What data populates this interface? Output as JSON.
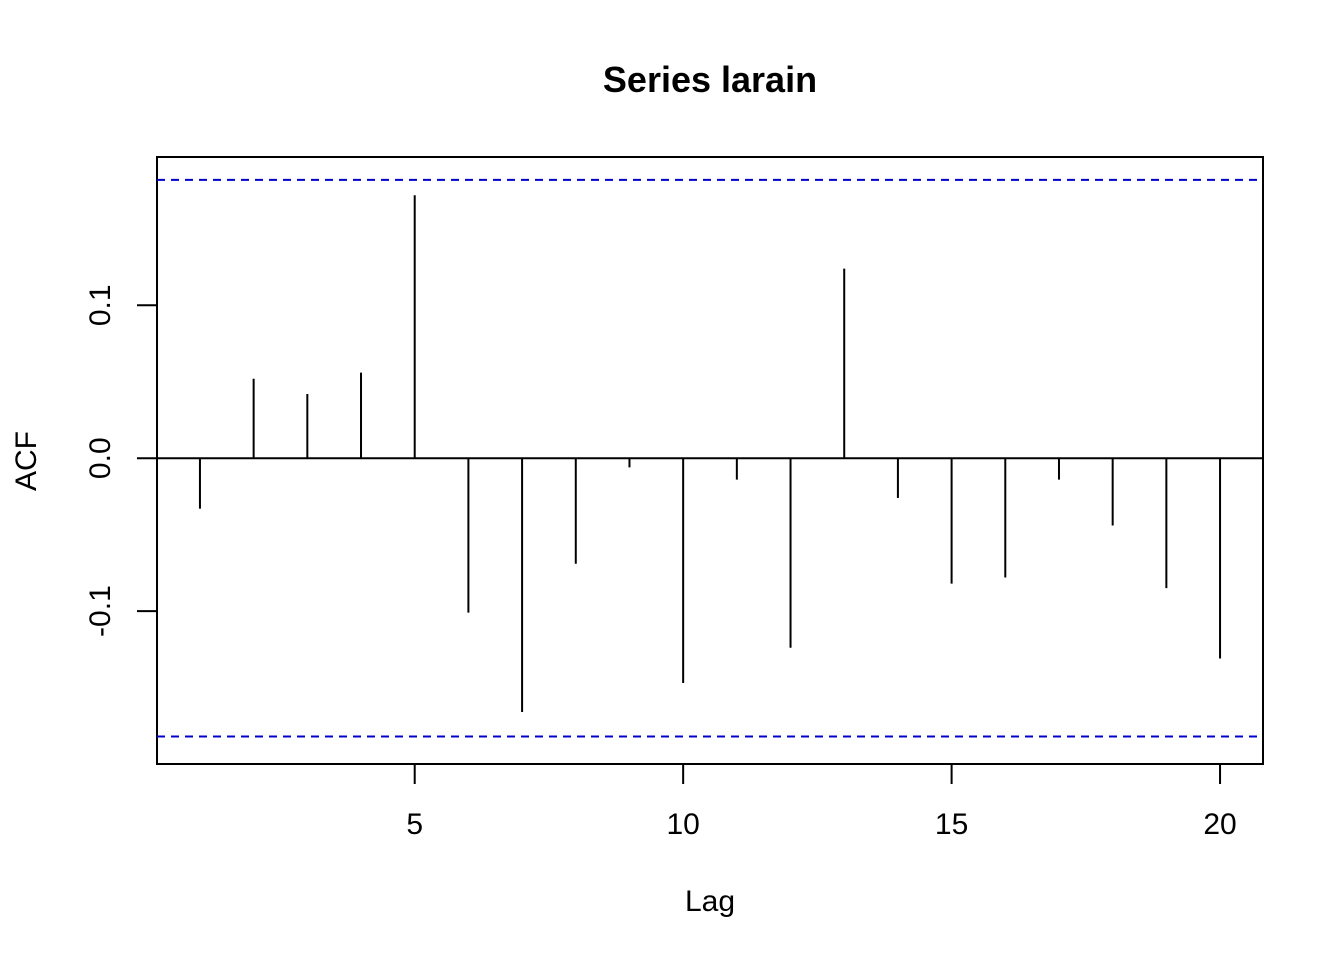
{
  "chart_data": {
    "type": "bar",
    "title": "Series larain",
    "xlabel": "Lag",
    "ylabel": "ACF",
    "xlim": [
      0.2,
      20.8
    ],
    "ylim": [
      -0.2,
      0.197
    ],
    "x_ticks": [
      5,
      10,
      15,
      20
    ],
    "x_tick_labels": [
      "5",
      "10",
      "15",
      "20"
    ],
    "y_ticks": [
      -0.1,
      0.0,
      0.1
    ],
    "y_tick_labels": [
      "-0.1",
      "0.0",
      "0.1"
    ],
    "confidence_limits": [
      0.182,
      -0.182
    ],
    "confidence_color": "#0000cc",
    "lags": [
      1,
      2,
      3,
      4,
      5,
      6,
      7,
      8,
      9,
      10,
      11,
      12,
      13,
      14,
      15,
      16,
      17,
      18,
      19,
      20
    ],
    "values": [
      -0.033,
      0.052,
      0.042,
      0.056,
      0.172,
      -0.101,
      -0.166,
      -0.069,
      -0.006,
      -0.147,
      -0.014,
      -0.124,
      0.124,
      -0.026,
      -0.082,
      -0.078,
      -0.014,
      -0.044,
      -0.085,
      -0.131
    ],
    "grid": false
  }
}
